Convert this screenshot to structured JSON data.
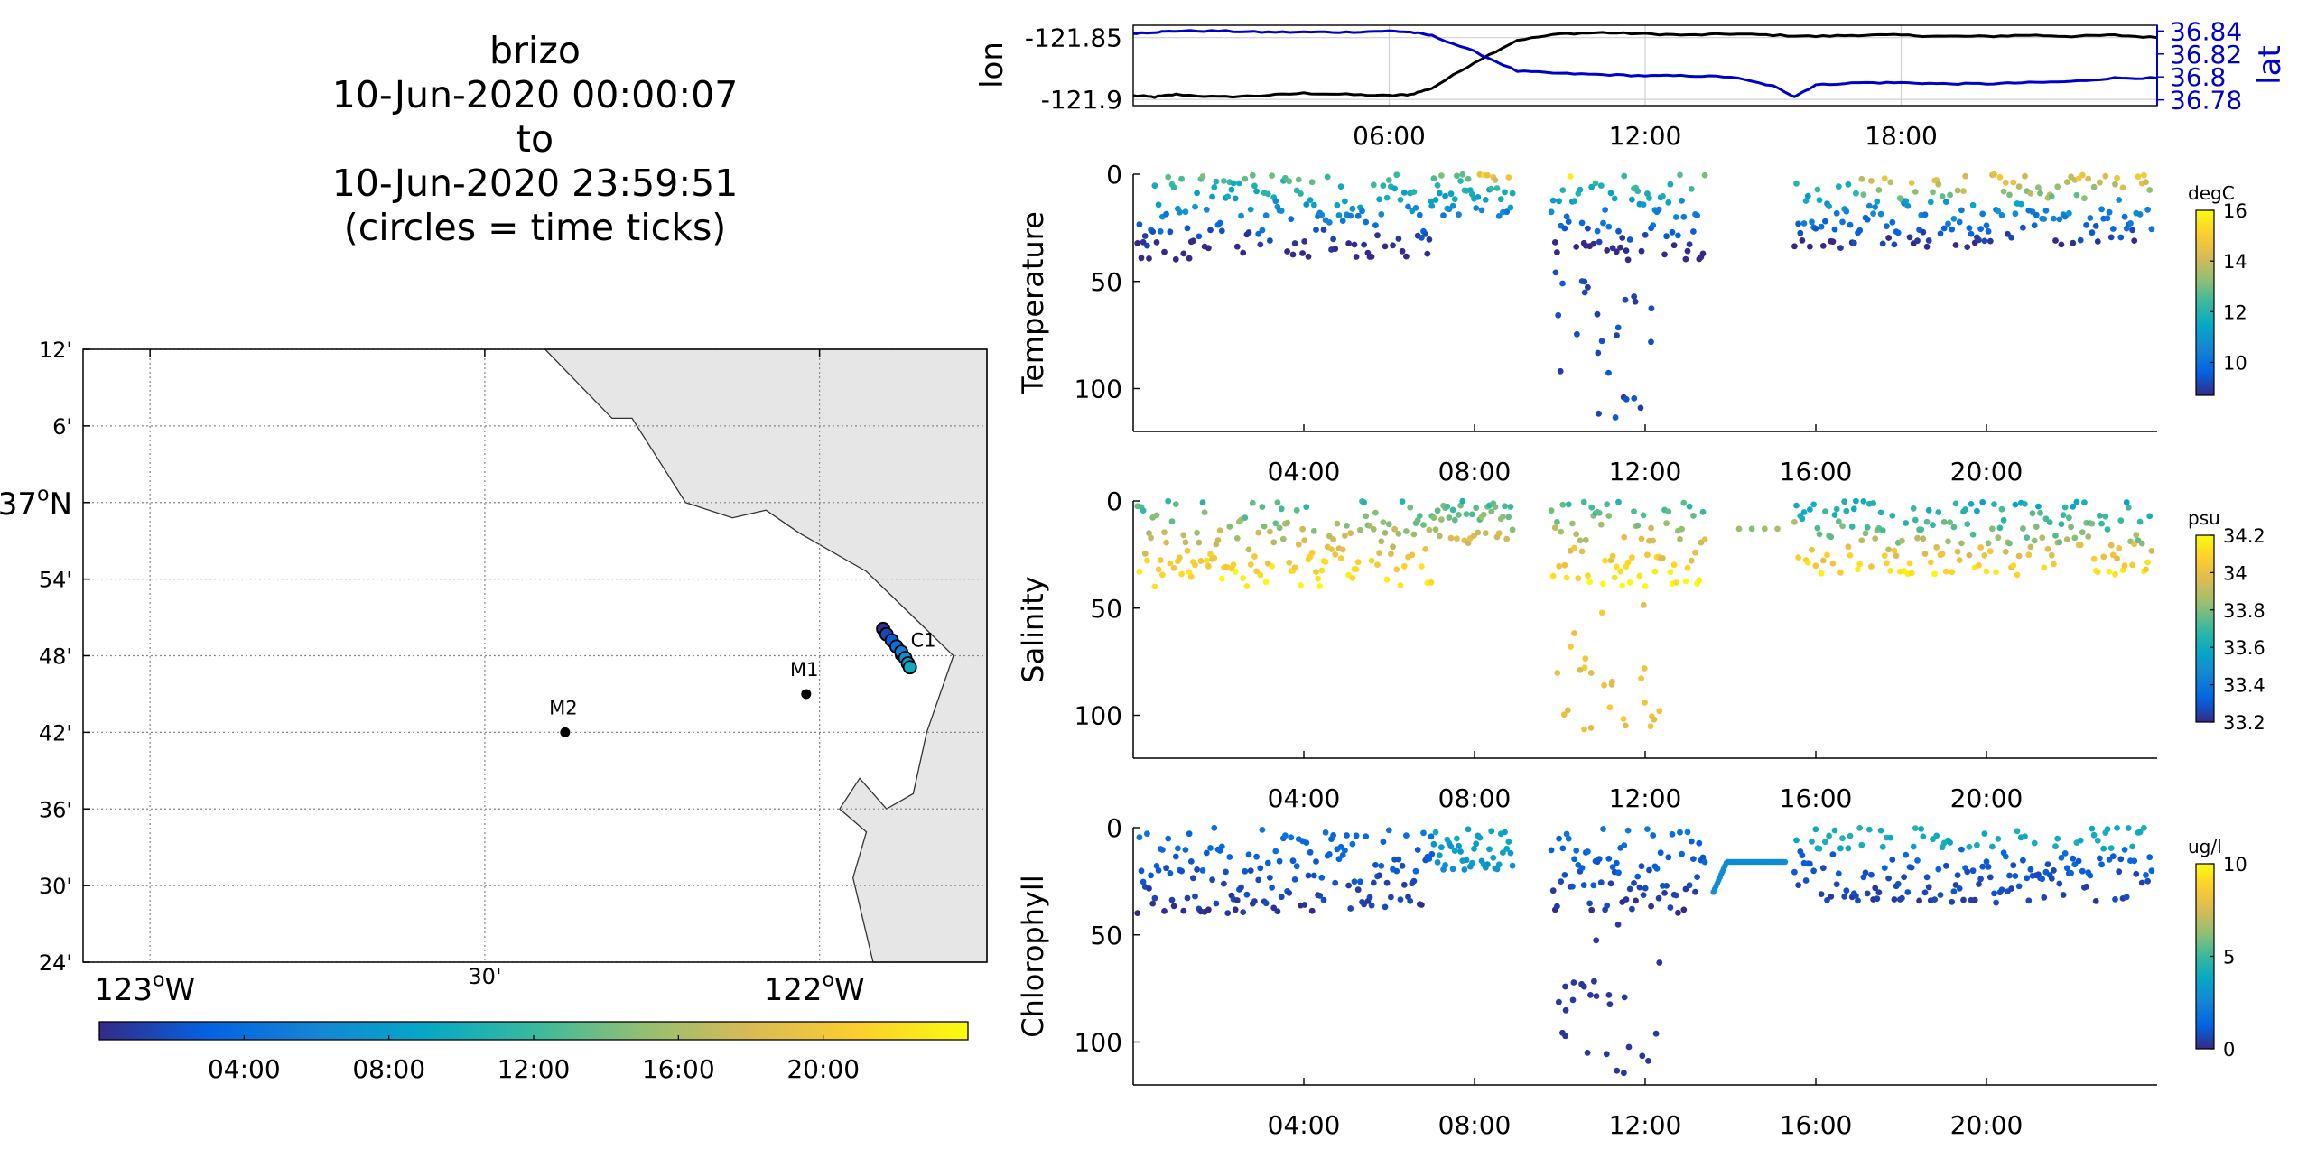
{
  "title": {
    "lines": [
      "brizo",
      "10-Jun-2020 00:00:07",
      "to",
      "10-Jun-2020 23:59:51",
      "(circles = time ticks)"
    ]
  },
  "colors": {
    "lon_line": "#000000",
    "lat_line": "#0000cc",
    "land": "#e6e6e6",
    "parula": [
      "#352a87",
      "#0363e1",
      "#1485d4",
      "#06a7c6",
      "#38b99e",
      "#92bf73",
      "#d9ba56",
      "#fcce2e",
      "#f9fb0e"
    ]
  },
  "chart_data": [
    {
      "type": "map",
      "y_ticks": [
        {
          "label": "12'",
          "lat": 37.2
        },
        {
          "label": "6'",
          "lat": 37.1
        },
        {
          "label": "37",
          "sup": "o",
          "suffix": "N",
          "lat": 37.0
        },
        {
          "label": "54'",
          "lat": 36.9
        },
        {
          "label": "48'",
          "lat": 36.8
        },
        {
          "label": "42'",
          "lat": 36.7
        },
        {
          "label": "36'",
          "lat": 36.6
        },
        {
          "label": "30'",
          "lat": 36.5
        },
        {
          "label": "24'",
          "lat": 36.4
        }
      ],
      "x_ticks": [
        {
          "label": "123",
          "sup": "o",
          "suffix": "W",
          "lon": -123.0
        },
        {
          "label": "30'",
          "lon": -122.5
        },
        {
          "label": "122",
          "sup": "o",
          "suffix": "W",
          "lon": -122.0
        }
      ],
      "xlim": [
        -123.1,
        -121.75
      ],
      "ylim": [
        36.4,
        37.2
      ],
      "coastline": [
        [
          -122.41,
          37.2
        ],
        [
          -122.31,
          37.11
        ],
        [
          -122.28,
          37.11
        ],
        [
          -122.2,
          37.0
        ],
        [
          -122.13,
          36.98
        ],
        [
          -122.08,
          36.99
        ],
        [
          -122.03,
          36.96
        ],
        [
          -121.93,
          36.91
        ],
        [
          -121.8,
          36.8
        ],
        [
          -121.84,
          36.7
        ],
        [
          -121.86,
          36.62
        ],
        [
          -121.9,
          36.6
        ],
        [
          -121.94,
          36.64
        ],
        [
          -121.97,
          36.6
        ],
        [
          -121.93,
          36.57
        ],
        [
          -121.95,
          36.51
        ],
        [
          -121.92,
          36.4
        ]
      ],
      "moorings": [
        {
          "name": "M2",
          "lon": -122.38,
          "lat": 36.7
        },
        {
          "name": "M1",
          "lon": -122.02,
          "lat": 36.75
        },
        {
          "name": "C1",
          "lon": -121.88,
          "lat": 36.8
        }
      ],
      "track": [
        [
          -121.905,
          36.835
        ],
        [
          -121.9,
          36.828
        ],
        [
          -121.892,
          36.82
        ],
        [
          -121.885,
          36.812
        ],
        [
          -121.878,
          36.805
        ],
        [
          -121.872,
          36.797
        ],
        [
          -121.868,
          36.79
        ],
        [
          -121.865,
          36.785
        ]
      ],
      "colorbar": {
        "labels": [
          "04:00",
          "08:00",
          "12:00",
          "16:00",
          "20:00"
        ],
        "range_hours": [
          0,
          24
        ]
      }
    },
    {
      "type": "line",
      "ylabel": "lon",
      "ylabel_right": "lat",
      "x_ticks": [
        "06:00",
        "12:00",
        "18:00"
      ],
      "yticks_left": [
        "-121.85",
        "-121.9"
      ],
      "yticks_right": [
        "36.84",
        "36.82",
        "36.8",
        "36.78"
      ],
      "xlim_hours": [
        0,
        24
      ],
      "ylim_left": [
        -121.905,
        -121.84
      ],
      "ylim_right": [
        36.775,
        36.845
      ],
      "series": [
        {
          "axis": "left",
          "x": [
            0,
            0.5,
            1,
            2,
            3,
            4,
            5,
            6,
            6.5,
            7,
            8,
            9,
            10,
            11,
            12,
            13,
            14,
            15,
            16,
            17,
            18,
            19,
            20,
            21,
            22,
            23,
            24
          ],
          "y": [
            -121.897,
            -121.898,
            -121.896,
            -121.898,
            -121.897,
            -121.895,
            -121.896,
            -121.897,
            -121.896,
            -121.891,
            -121.87,
            -121.852,
            -121.847,
            -121.846,
            -121.847,
            -121.848,
            -121.847,
            -121.848,
            -121.849,
            -121.848,
            -121.848,
            -121.849,
            -121.849,
            -121.848,
            -121.849,
            -121.848,
            -121.85
          ]
        },
        {
          "axis": "right",
          "x": [
            0,
            0.5,
            1,
            2,
            3,
            4,
            5,
            6,
            6.5,
            7,
            8,
            9,
            10,
            11,
            12,
            13,
            14,
            15,
            15.5,
            16,
            17,
            18,
            19,
            20,
            21,
            22,
            23,
            24
          ],
          "y": [
            36.838,
            36.839,
            36.84,
            36.84,
            36.839,
            36.839,
            36.839,
            36.84,
            36.839,
            36.836,
            36.822,
            36.805,
            36.803,
            36.802,
            36.801,
            36.801,
            36.8,
            36.792,
            36.783,
            36.793,
            36.795,
            36.795,
            36.794,
            36.794,
            36.795,
            36.796,
            36.799,
            36.799
          ]
        }
      ]
    },
    {
      "type": "scatter",
      "ylabel": "Temperature",
      "units": "degC",
      "x_ticks": [
        "04:00",
        "08:00",
        "12:00",
        "16:00",
        "20:00"
      ],
      "y_ticks": [
        "0",
        "50",
        "100"
      ],
      "xlim_hours": [
        0,
        24
      ],
      "ylim": [
        120,
        0
      ],
      "clim": [
        8.7,
        16
      ],
      "colorbar_ticks": [
        "16",
        "14",
        "12",
        "10"
      ]
    },
    {
      "type": "scatter",
      "ylabel": "Salinity",
      "units": "psu",
      "x_ticks": [
        "04:00",
        "08:00",
        "12:00",
        "16:00",
        "20:00"
      ],
      "y_ticks": [
        "0",
        "50",
        "100"
      ],
      "xlim_hours": [
        0,
        24
      ],
      "ylim": [
        120,
        0
      ],
      "clim": [
        33.2,
        34.2
      ],
      "colorbar_ticks": [
        "34.2",
        "34",
        "33.8",
        "33.6",
        "33.4",
        "33.2"
      ]
    },
    {
      "type": "scatter",
      "ylabel": "Chlorophyll",
      "units": "ug/l",
      "x_ticks": [
        "04:00",
        "08:00",
        "12:00",
        "16:00",
        "20:00"
      ],
      "y_ticks": [
        "0",
        "50",
        "100"
      ],
      "xlim_hours": [
        0,
        24
      ],
      "ylim": [
        120,
        0
      ],
      "clim": [
        0,
        10
      ],
      "colorbar_ticks": [
        "10",
        "5",
        "0"
      ]
    }
  ]
}
